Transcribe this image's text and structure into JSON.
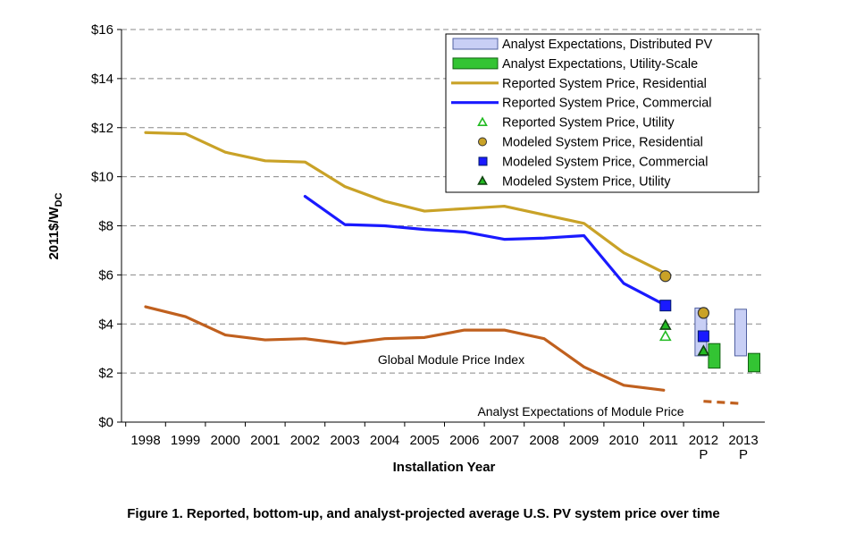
{
  "figure": {
    "caption": "Figure 1. Reported, bottom-up, and analyst-projected average U.S. PV system price over time"
  },
  "chart_data": {
    "type": "line",
    "xlabel": "Installation Year",
    "ylabel": "2011$/W",
    "ylabel_subscript": "DC",
    "ylim": [
      0,
      16
    ],
    "yticks": [
      {
        "value": 0,
        "label": "$0"
      },
      {
        "value": 2,
        "label": "$2"
      },
      {
        "value": 4,
        "label": "$4"
      },
      {
        "value": 6,
        "label": "$6"
      },
      {
        "value": 8,
        "label": "$8"
      },
      {
        "value": 10,
        "label": "$10"
      },
      {
        "value": 12,
        "label": "$12"
      },
      {
        "value": 14,
        "label": "$14"
      },
      {
        "value": 16,
        "label": "$16"
      }
    ],
    "categories": [
      "1998",
      "1999",
      "2000",
      "2001",
      "2002",
      "2003",
      "2004",
      "2005",
      "2006",
      "2007",
      "2008",
      "2009",
      "2010",
      "2011",
      "2012",
      "2013"
    ],
    "projection_marks": [
      {
        "category": "2012",
        "label": "P"
      },
      {
        "category": "2013",
        "label": "P"
      }
    ],
    "grid": "horizontal dashed",
    "legend_position": "top-right",
    "colors": {
      "residential": "#c9a227",
      "commercial": "#1a1aff",
      "utility": "#22bb22",
      "module": "#c0601e",
      "distributed_box": "#c8cff5",
      "utility_box": "#33c433"
    },
    "series": [
      {
        "name": "Reported System Price, Residential",
        "kind": "line",
        "color_key": "residential",
        "x": [
          "1998",
          "1999",
          "2000",
          "2001",
          "2002",
          "2003",
          "2004",
          "2005",
          "2006",
          "2007",
          "2008",
          "2009",
          "2010",
          "2011"
        ],
        "values": [
          11.8,
          11.75,
          11.0,
          10.65,
          10.6,
          9.6,
          9.0,
          8.6,
          8.7,
          8.8,
          8.45,
          8.1,
          6.9,
          6.1
        ]
      },
      {
        "name": "Reported System Price, Commercial",
        "kind": "line",
        "color_key": "commercial",
        "x": [
          "2002",
          "2003",
          "2004",
          "2005",
          "2006",
          "2007",
          "2008",
          "2009",
          "2010",
          "2011"
        ],
        "values": [
          9.2,
          8.05,
          8.0,
          7.85,
          7.75,
          7.45,
          7.5,
          7.6,
          5.65,
          4.8
        ]
      },
      {
        "name": "Global Module Price Index",
        "kind": "line",
        "color_key": "module",
        "x": [
          "1998",
          "1999",
          "2000",
          "2001",
          "2002",
          "2003",
          "2004",
          "2005",
          "2006",
          "2007",
          "2008",
          "2009",
          "2010",
          "2011"
        ],
        "values": [
          4.7,
          4.3,
          3.55,
          3.35,
          3.4,
          3.2,
          3.4,
          3.45,
          3.75,
          3.75,
          3.4,
          2.25,
          1.5,
          1.3
        ]
      },
      {
        "name": "Analyst Expectations of Module Price",
        "kind": "dashed",
        "color_key": "module",
        "x": [
          "2012",
          "2013"
        ],
        "values": [
          0.85,
          0.75
        ]
      },
      {
        "name": "Reported System Price, Utility",
        "kind": "open-triangle",
        "color_key": "utility",
        "x": [
          "2011"
        ],
        "values": [
          3.5
        ]
      },
      {
        "name": "Modeled System Price, Residential",
        "kind": "circle",
        "color_key": "residential",
        "x": [
          "2011",
          "2012"
        ],
        "values": [
          5.95,
          4.45
        ]
      },
      {
        "name": "Modeled System Price, Commercial",
        "kind": "square",
        "color_key": "commercial",
        "x": [
          "2011",
          "2012"
        ],
        "values": [
          4.75,
          3.5
        ]
      },
      {
        "name": "Modeled System Price, Utility",
        "kind": "filled-triangle",
        "color_key": "utility",
        "x": [
          "2011",
          "2012"
        ],
        "values": [
          3.95,
          2.9
        ]
      },
      {
        "name": "Analyst Expectations, Distributed PV",
        "kind": "range",
        "color_key": "distributed_box",
        "x": [
          "2012",
          "2013"
        ],
        "low": [
          2.7,
          2.7
        ],
        "high": [
          4.65,
          4.6
        ]
      },
      {
        "name": "Analyst Expectations, Utility-Scale",
        "kind": "range",
        "color_key": "utility_box",
        "x": [
          "2012",
          "2013"
        ],
        "low": [
          2.2,
          2.05
        ],
        "high": [
          3.2,
          2.8
        ]
      }
    ],
    "legend": [
      {
        "label": "Analyst Expectations, Distributed PV",
        "symbol": "box",
        "color_key": "distributed_box"
      },
      {
        "label": "Analyst Expectations, Utility-Scale",
        "symbol": "box",
        "color_key": "utility_box"
      },
      {
        "label": "Reported System Price, Residential",
        "symbol": "line",
        "color_key": "residential"
      },
      {
        "label": "Reported System Price, Commercial",
        "symbol": "line",
        "color_key": "commercial"
      },
      {
        "label": "Reported System Price, Utility",
        "symbol": "open-triangle",
        "color_key": "utility"
      },
      {
        "label": "Modeled System Price, Residential",
        "symbol": "circle",
        "color_key": "residential"
      },
      {
        "label": "Modeled System Price, Commercial",
        "symbol": "square",
        "color_key": "commercial"
      },
      {
        "label": "Modeled System Price, Utility",
        "symbol": "filled-triangle",
        "color_key": "utility"
      }
    ],
    "annotations": [
      {
        "text": "Global Module Price Index",
        "series": "Global Module Price Index"
      },
      {
        "text": "Analyst Expectations of Module Price",
        "series": "Analyst Expectations of Module Price"
      }
    ]
  }
}
